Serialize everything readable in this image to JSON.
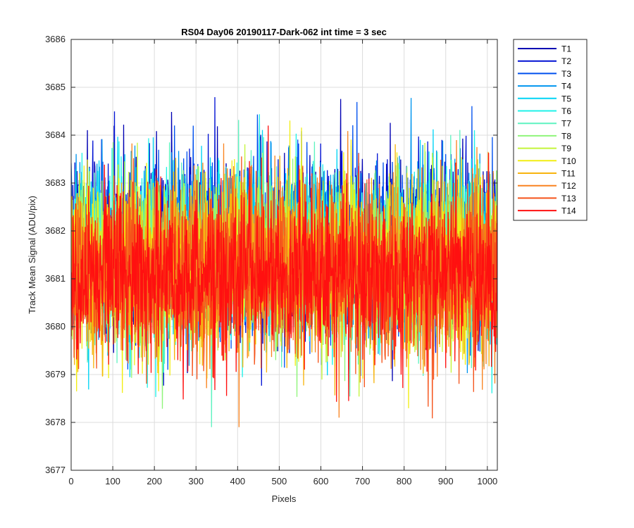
{
  "chart_data": {
    "type": "line",
    "title": "RS04 Day06 20190117-Dark-062 int time = 3 sec",
    "xlabel": "Pixels",
    "ylabel": "Track Mean Signal (ADU/pix)",
    "xlim": [
      0,
      1024
    ],
    "ylim": [
      3677,
      3686
    ],
    "xticks": [
      0,
      100,
      200,
      300,
      400,
      500,
      600,
      700,
      800,
      900,
      1000
    ],
    "yticks": [
      3677,
      3678,
      3679,
      3680,
      3681,
      3682,
      3683,
      3684,
      3685,
      3686
    ],
    "grid": true,
    "legend_position": "outside-top-right",
    "n_points": 1024,
    "series": [
      {
        "name": "T1",
        "color": "#0000b3",
        "mean": 3681.7,
        "spread": 0.85
      },
      {
        "name": "T2",
        "color": "#0011d4",
        "mean": 3681.7,
        "spread": 0.85
      },
      {
        "name": "T3",
        "color": "#0050ef",
        "mean": 3681.65,
        "spread": 0.85
      },
      {
        "name": "T4",
        "color": "#0095ef",
        "mean": 3681.6,
        "spread": 0.85
      },
      {
        "name": "T5",
        "color": "#00d4f5",
        "mean": 3681.55,
        "spread": 0.85
      },
      {
        "name": "T6",
        "color": "#1ff2e8",
        "mean": 3681.5,
        "spread": 0.85
      },
      {
        "name": "T7",
        "color": "#5ef3c0",
        "mean": 3681.45,
        "spread": 0.85
      },
      {
        "name": "T8",
        "color": "#8ff57a",
        "mean": 3681.4,
        "spread": 0.85
      },
      {
        "name": "T9",
        "color": "#c4f53a",
        "mean": 3681.35,
        "spread": 0.85
      },
      {
        "name": "T10",
        "color": "#f2ee14",
        "mean": 3681.3,
        "spread": 0.85
      },
      {
        "name": "T11",
        "color": "#f7b40f",
        "mean": 3681.25,
        "spread": 0.85
      },
      {
        "name": "T12",
        "color": "#f98420",
        "mean": 3681.2,
        "spread": 0.85
      },
      {
        "name": "T13",
        "color": "#f5531a",
        "mean": 3681.15,
        "spread": 0.85
      },
      {
        "name": "T14",
        "color": "#ff1010",
        "mean": 3681.1,
        "spread": 0.85
      }
    ]
  }
}
